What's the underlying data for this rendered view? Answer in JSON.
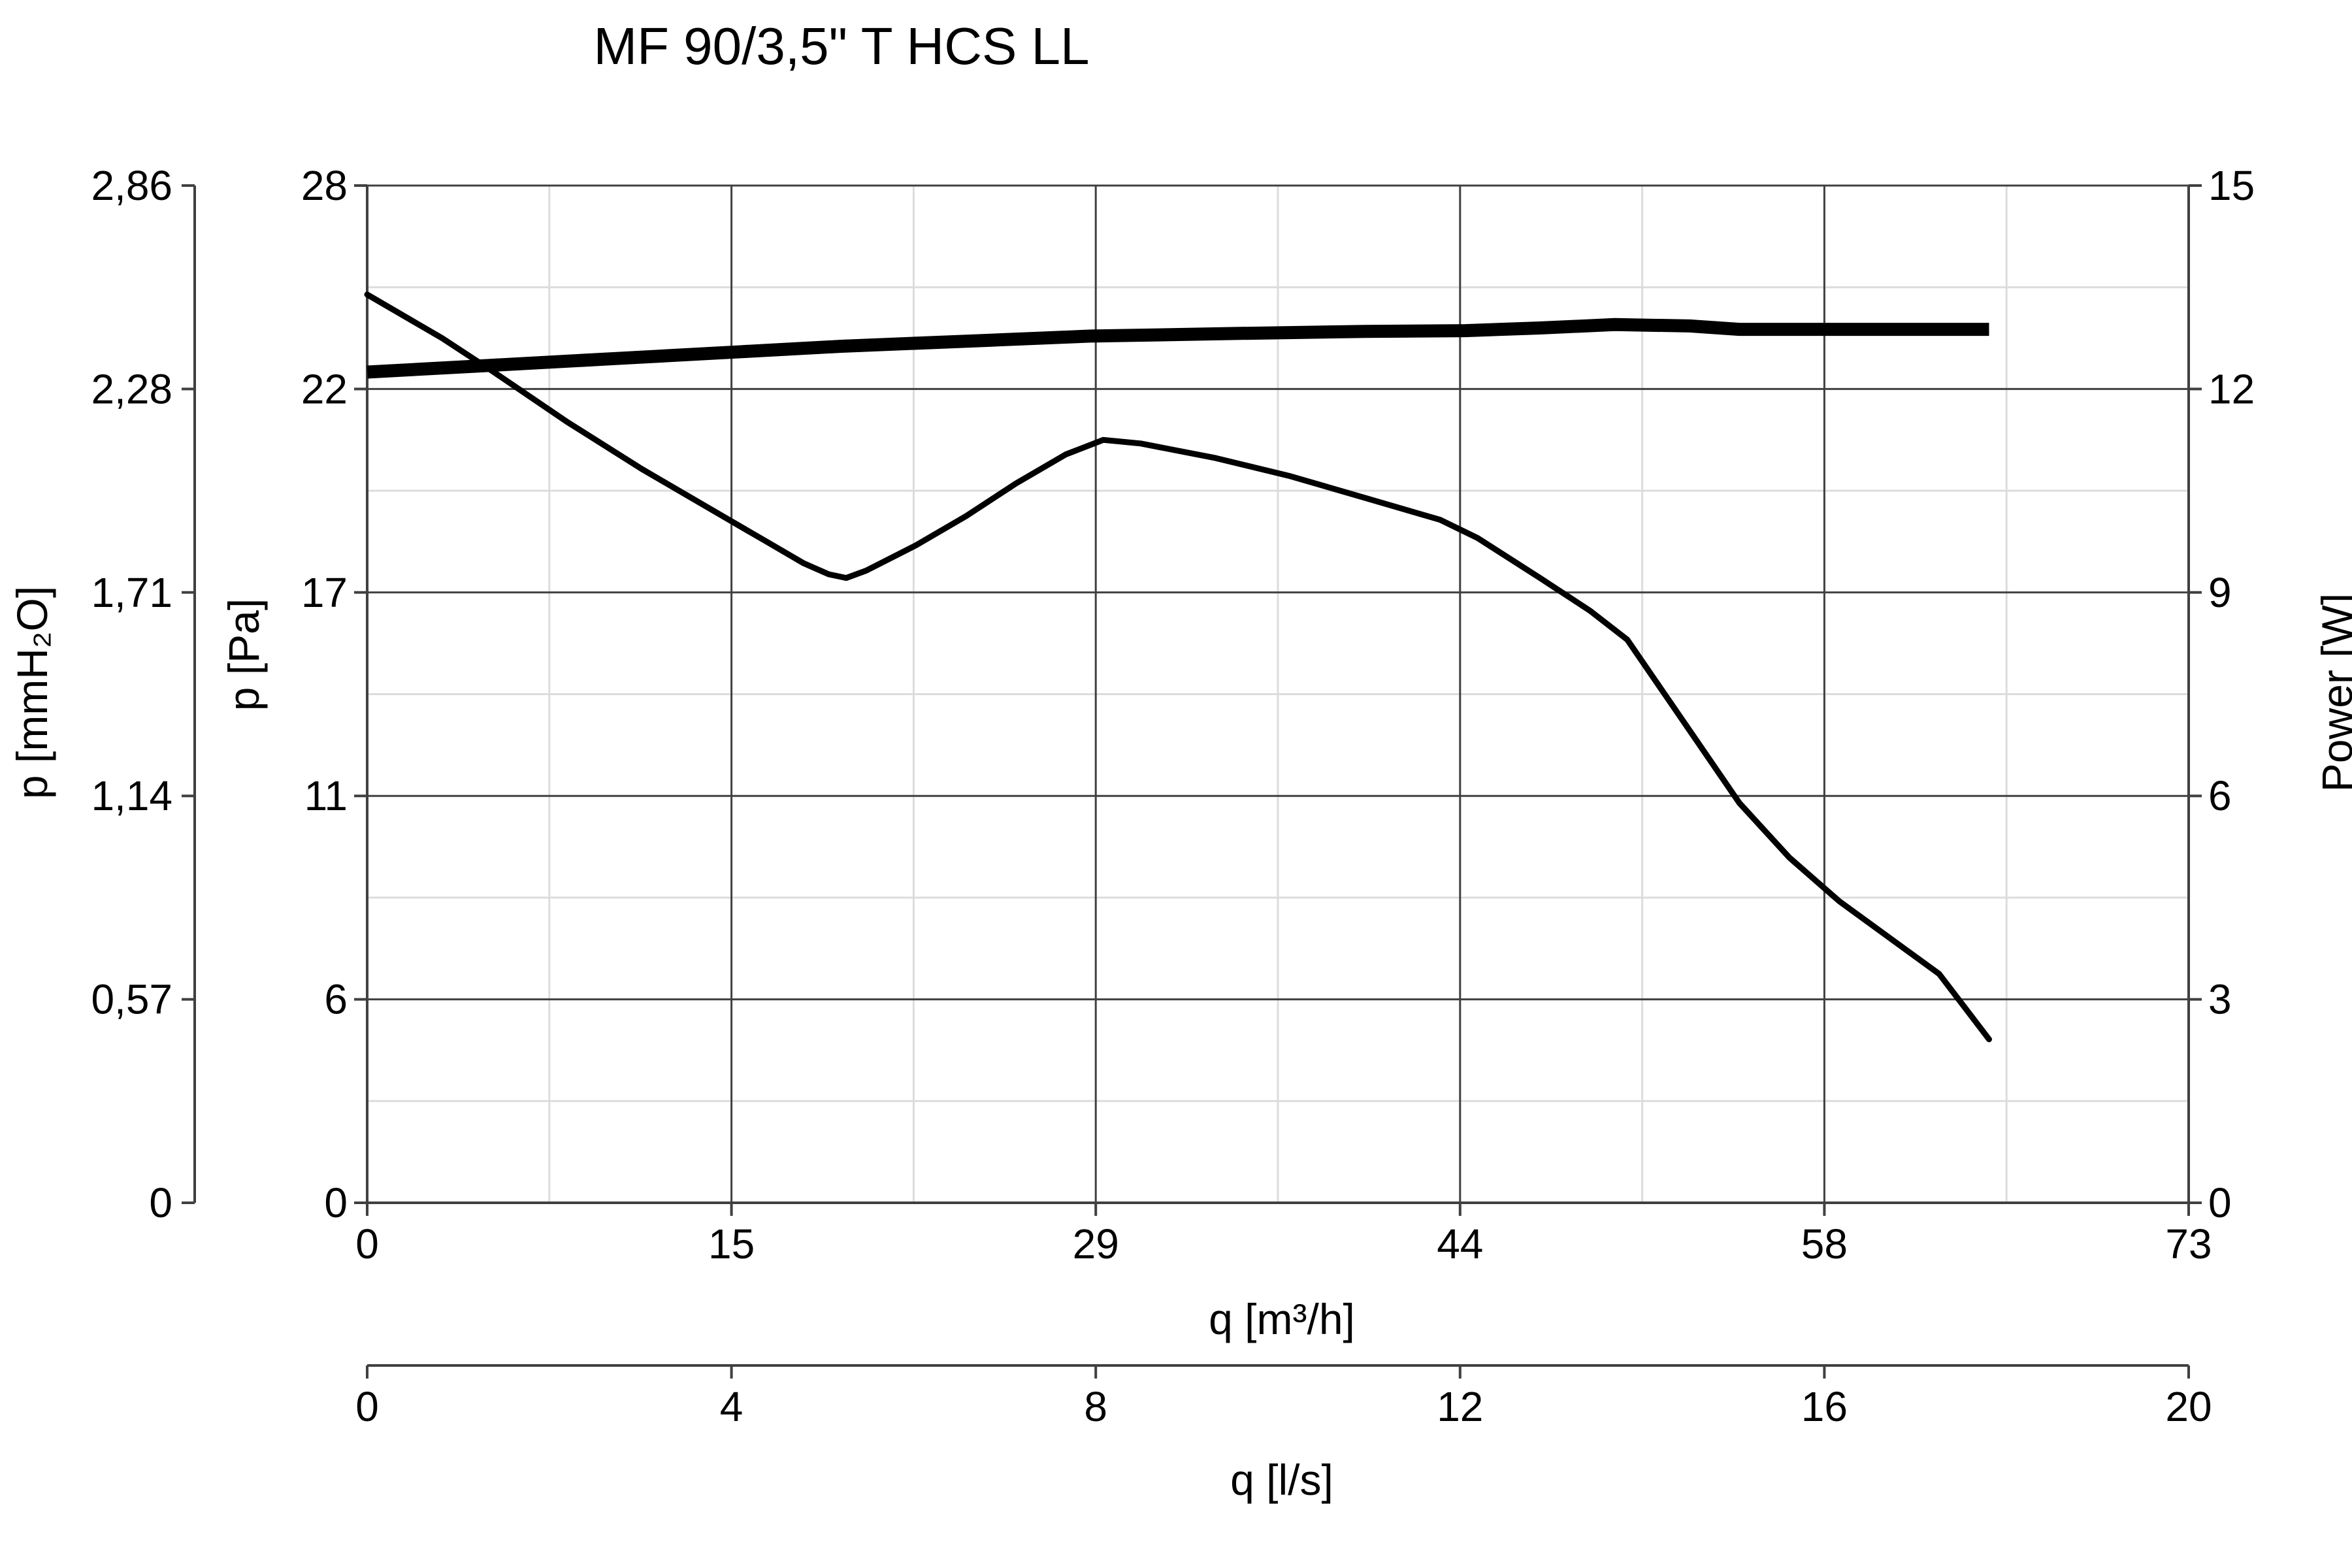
{
  "chart_data": {
    "type": "line",
    "title": "MF 90/3,5\" T HCS LL",
    "x_axis": {
      "label": "q [m³/h]",
      "range": [
        0,
        73
      ],
      "ticks": [
        "0",
        "15",
        "29",
        "44",
        "58",
        "73"
      ]
    },
    "x2_axis": {
      "label": "q [l/s]",
      "range": [
        0,
        20
      ],
      "ticks": [
        "0",
        "4",
        "8",
        "12",
        "16",
        "20"
      ]
    },
    "y_axis": {
      "label": "p [Pa]",
      "range": [
        0,
        28
      ],
      "ticks": [
        "0",
        "6",
        "11",
        "17",
        "22",
        "28"
      ]
    },
    "y2_axis": {
      "label": "p [mmH₂O]",
      "range": [
        0,
        2.86
      ],
      "ticks": [
        "0",
        "0,57",
        "1,14",
        "1,71",
        "2,28",
        "2,86"
      ]
    },
    "y3_axis": {
      "label": "Power [W]",
      "range": [
        0,
        15
      ],
      "ticks": [
        "0",
        "3",
        "6",
        "9",
        "12",
        "15"
      ]
    },
    "grid": true,
    "series": [
      {
        "axis": "pressure",
        "color": "#000000",
        "points": [
          [
            0,
            25.0
          ],
          [
            3,
            23.8
          ],
          [
            5,
            22.9
          ],
          [
            8,
            21.5
          ],
          [
            11,
            20.2
          ],
          [
            14,
            19.0
          ],
          [
            16,
            18.2
          ],
          [
            17.5,
            17.6
          ],
          [
            18.5,
            17.3
          ],
          [
            19.2,
            17.2
          ],
          [
            20,
            17.4
          ],
          [
            22,
            18.1
          ],
          [
            24,
            18.9
          ],
          [
            26,
            19.8
          ],
          [
            28,
            20.6
          ],
          [
            29.5,
            21.0
          ],
          [
            31,
            20.9
          ],
          [
            34,
            20.5
          ],
          [
            37,
            20.0
          ],
          [
            40,
            19.4
          ],
          [
            43,
            18.8
          ],
          [
            44.5,
            18.3
          ],
          [
            47,
            17.2
          ],
          [
            49,
            16.3
          ],
          [
            50.5,
            15.5
          ],
          [
            52,
            14.0
          ],
          [
            53.5,
            12.5
          ],
          [
            55,
            11.0
          ],
          [
            57,
            9.5
          ],
          [
            59,
            8.3
          ],
          [
            61,
            7.3
          ],
          [
            63,
            6.3
          ],
          [
            65,
            4.5
          ]
        ]
      },
      {
        "axis": "power",
        "color": "#000000",
        "points": [
          [
            0,
            12.25
          ],
          [
            5,
            12.35
          ],
          [
            10,
            12.45
          ],
          [
            15,
            12.55
          ],
          [
            19,
            12.63
          ],
          [
            25,
            12.72
          ],
          [
            29,
            12.78
          ],
          [
            35,
            12.82
          ],
          [
            40,
            12.85
          ],
          [
            44,
            12.86
          ],
          [
            47,
            12.9
          ],
          [
            50,
            12.95
          ],
          [
            53,
            12.93
          ],
          [
            55,
            12.88
          ],
          [
            60,
            12.88
          ],
          [
            65,
            12.88
          ]
        ]
      }
    ]
  }
}
